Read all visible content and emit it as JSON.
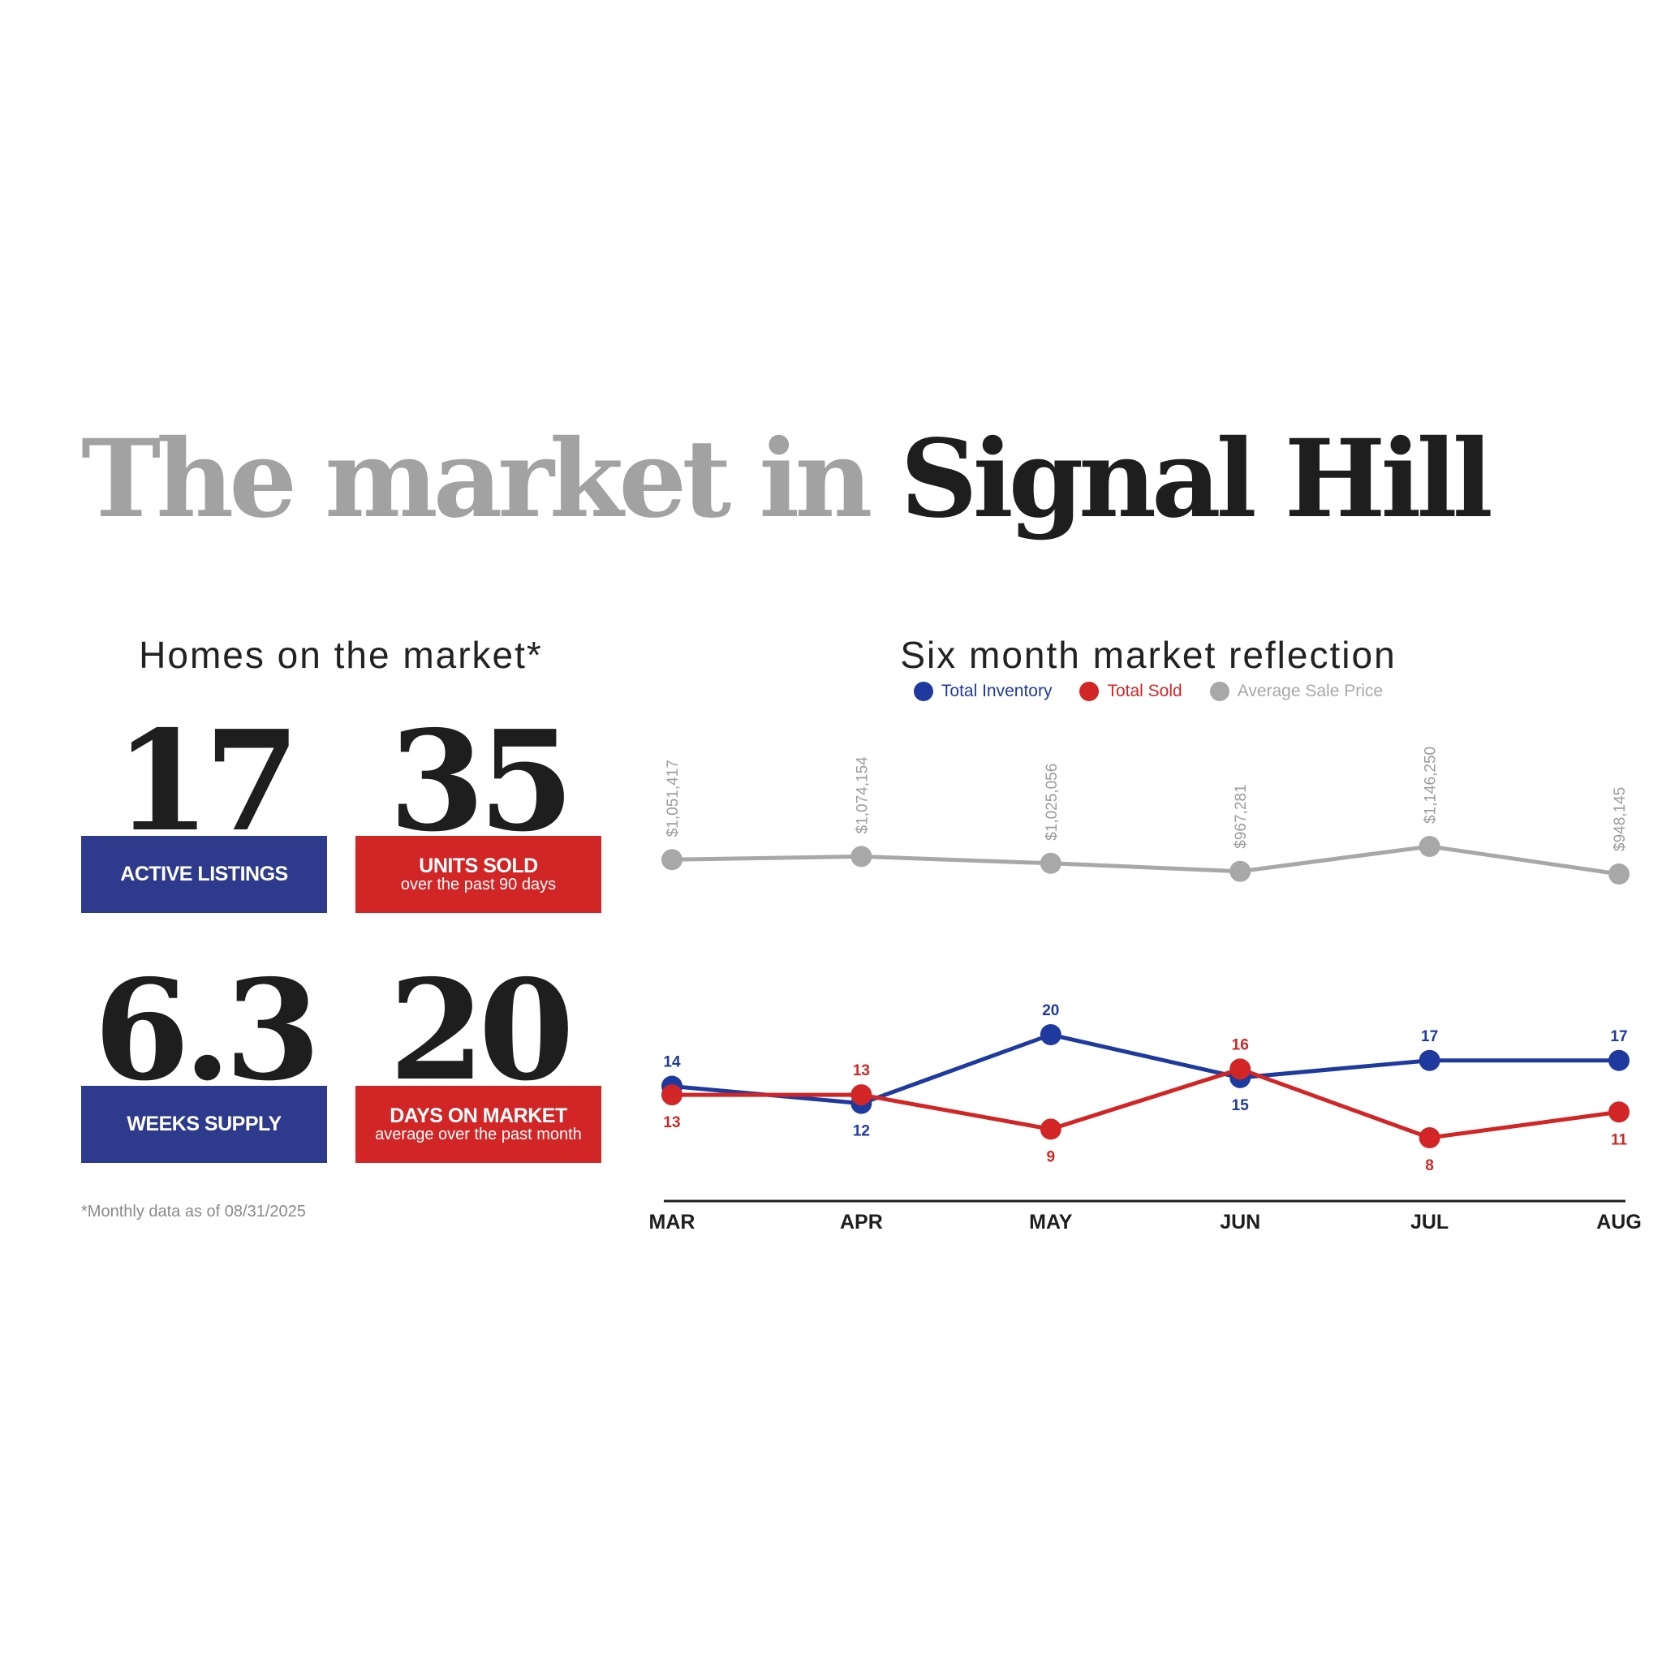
{
  "header": {
    "title_part1": "The market in ",
    "title_part2": "Signal Hill"
  },
  "left_panel": {
    "heading": "Homes on the market*",
    "stats": [
      {
        "value": "17",
        "label": "ACTIVE LISTINGS",
        "sub": "",
        "color": "#2e3a8c"
      },
      {
        "value": "35",
        "label": "UNITS SOLD",
        "sub": "over the past 90 days",
        "color": "#d12526"
      },
      {
        "value": "6.3",
        "label": "WEEKS SUPPLY",
        "sub": "",
        "color": "#2e3a8c"
      },
      {
        "value": "20",
        "label": "DAYS ON MARKET",
        "sub": "average over the past month",
        "color": "#d12526"
      }
    ],
    "footnote": "*Monthly data as of 08/31/2025"
  },
  "right_panel": {
    "heading": "Six month market reflection"
  },
  "chart_data": {
    "type": "line",
    "title": "Six month market reflection",
    "categories": [
      "MAR",
      "APR",
      "MAY",
      "JUN",
      "JUL",
      "AUG"
    ],
    "legend_position": "top-center",
    "grid": false,
    "series": [
      {
        "name": "Total Inventory",
        "color": "#1f3a9e",
        "values": [
          14,
          12,
          20,
          15,
          17,
          17
        ],
        "labels": [
          "14",
          "12",
          "20",
          "15",
          "17",
          "17"
        ]
      },
      {
        "name": "Total Sold",
        "color": "#d12526",
        "values": [
          13,
          13,
          9,
          16,
          8,
          11
        ],
        "labels": [
          "13",
          "13",
          "9",
          "16",
          "8",
          "11"
        ]
      },
      {
        "name": "Average Sale Price",
        "color": "#a8a8a8",
        "values": [
          1051417,
          1074154,
          1025056,
          967281,
          1146250,
          948145
        ],
        "labels": [
          "$1,051,417",
          "$1,074,154",
          "$1,025,056",
          "$967,281",
          "$1,146,250",
          "$948,145"
        ]
      }
    ]
  }
}
